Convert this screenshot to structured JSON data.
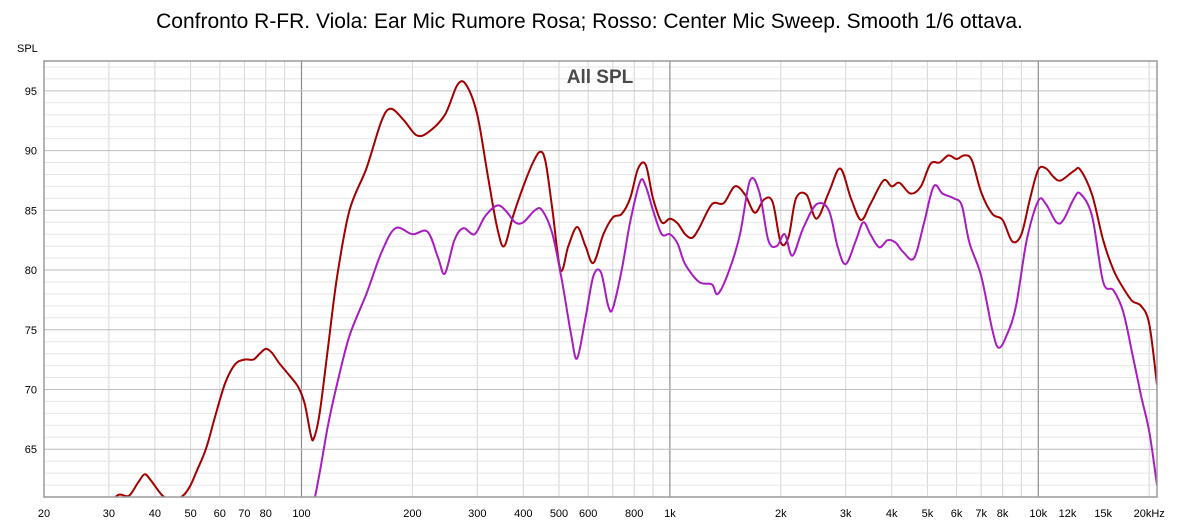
{
  "title": "Confronto R-FR. Viola: Ear Mic Rumore Rosa; Rosso: Center Mic Sweep. Smooth 1/6 ottava.",
  "chart_data": {
    "type": "line",
    "title": "Confronto R-FR. Viola: Ear Mic Rumore Rosa; Rosso: Center Mic Sweep. Smooth 1/6 ottava.",
    "subtitle": "All SPL",
    "ylabel": "SPL",
    "xlabel": "",
    "xscale": "log",
    "xlim": [
      20,
      21000
    ],
    "ylim": [
      61,
      97.5
    ],
    "grid": true,
    "x_ticks": [
      {
        "value": 20,
        "label": "20",
        "color": "#000000"
      },
      {
        "value": 30,
        "label": "30",
        "color": "#000000"
      },
      {
        "value": 40,
        "label": "40",
        "color": "#000000"
      },
      {
        "value": 50,
        "label": "50",
        "color": "#000000"
      },
      {
        "value": 60,
        "label": "60",
        "color": "#000000"
      },
      {
        "value": 70,
        "label": "70",
        "color": "#000000"
      },
      {
        "value": 80,
        "label": "80",
        "color": "#000000"
      },
      {
        "value": 100,
        "label": "100",
        "color": "#000000"
      },
      {
        "value": 200,
        "label": "200",
        "color": "#000000"
      },
      {
        "value": 300,
        "label": "300",
        "color": "#000000"
      },
      {
        "value": 400,
        "label": "400",
        "color": "#000000"
      },
      {
        "value": 500,
        "label": "500",
        "color": "#000000"
      },
      {
        "value": 600,
        "label": "600",
        "color": "#000000"
      },
      {
        "value": 800,
        "label": "800",
        "color": "#000000"
      },
      {
        "value": 1000,
        "label": "1k",
        "color": "#000000"
      },
      {
        "value": 2000,
        "label": "2k",
        "color": "#000000"
      },
      {
        "value": 3000,
        "label": "3k",
        "color": "#000000"
      },
      {
        "value": 4000,
        "label": "4k",
        "color": "#000000"
      },
      {
        "value": 5000,
        "label": "5k",
        "color": "#000000"
      },
      {
        "value": 6000,
        "label": "6k",
        "color": "#000000"
      },
      {
        "value": 7000,
        "label": "7k",
        "color": "#000000"
      },
      {
        "value": 8000,
        "label": "8k",
        "color": "#000000"
      },
      {
        "value": 10000,
        "label": "10k",
        "color": "#000000"
      },
      {
        "value": 12000,
        "label": "12k",
        "color": "#888888"
      },
      {
        "value": 15000,
        "label": "15k",
        "color": "#888888"
      },
      {
        "value": 20000,
        "label": "20kHz",
        "color": "#000000"
      }
    ],
    "y_ticks": [
      65,
      70,
      75,
      80,
      85,
      90,
      95
    ],
    "colors": {
      "plot_background": "#ffffff",
      "grid_minor": "#d6d6d6",
      "grid_major": "#8c8c8c",
      "frame": "#9a9a9a"
    },
    "series": [
      {
        "color": "#a30000",
        "points": [
          [
            25,
            60.2
          ],
          [
            30,
            60.7
          ],
          [
            32,
            61.2
          ],
          [
            34,
            61.1
          ],
          [
            36,
            62.2
          ],
          [
            37.5,
            62.9
          ],
          [
            39,
            62.4
          ],
          [
            42,
            61.1
          ],
          [
            45,
            60.7
          ],
          [
            48,
            61.2
          ],
          [
            50,
            62.0
          ],
          [
            52,
            63.2
          ],
          [
            55,
            65.0
          ],
          [
            58,
            67.5
          ],
          [
            62,
            70.5
          ],
          [
            66,
            72.1
          ],
          [
            70,
            72.5
          ],
          [
            74,
            72.5
          ],
          [
            77,
            73.0
          ],
          [
            80,
            73.4
          ],
          [
            83,
            73.1
          ],
          [
            87,
            72.2
          ],
          [
            92,
            71.3
          ],
          [
            98,
            70.2
          ],
          [
            102,
            68.8
          ],
          [
            106,
            66.2
          ],
          [
            108,
            65.9
          ],
          [
            112,
            68.0
          ],
          [
            118,
            73.5
          ],
          [
            125,
            79.5
          ],
          [
            135,
            85.0
          ],
          [
            150,
            88.5
          ],
          [
            165,
            92.5
          ],
          [
            175,
            93.5
          ],
          [
            190,
            92.5
          ],
          [
            205,
            91.3
          ],
          [
            220,
            91.5
          ],
          [
            245,
            93.0
          ],
          [
            265,
            95.5
          ],
          [
            280,
            95.5
          ],
          [
            300,
            93.0
          ],
          [
            320,
            88.0
          ],
          [
            340,
            83.5
          ],
          [
            355,
            82.0
          ],
          [
            375,
            84.5
          ],
          [
            400,
            87.0
          ],
          [
            425,
            89.0
          ],
          [
            445,
            89.9
          ],
          [
            460,
            89.0
          ],
          [
            480,
            85.0
          ],
          [
            505,
            80.0
          ],
          [
            530,
            82.0
          ],
          [
            560,
            83.6
          ],
          [
            590,
            82.0
          ],
          [
            620,
            80.6
          ],
          [
            660,
            83.0
          ],
          [
            700,
            84.4
          ],
          [
            740,
            84.7
          ],
          [
            780,
            86.0
          ],
          [
            820,
            88.5
          ],
          [
            860,
            88.8
          ],
          [
            900,
            86.0
          ],
          [
            950,
            84.0
          ],
          [
            1000,
            84.3
          ],
          [
            1050,
            83.9
          ],
          [
            1100,
            83.0
          ],
          [
            1150,
            82.7
          ],
          [
            1200,
            83.5
          ],
          [
            1300,
            85.5
          ],
          [
            1400,
            85.6
          ],
          [
            1500,
            87.0
          ],
          [
            1600,
            86.3
          ],
          [
            1700,
            84.8
          ],
          [
            1800,
            85.9
          ],
          [
            1900,
            85.7
          ],
          [
            2000,
            82.3
          ],
          [
            2100,
            82.8
          ],
          [
            2200,
            86.0
          ],
          [
            2350,
            86.3
          ],
          [
            2500,
            84.3
          ],
          [
            2700,
            86.5
          ],
          [
            2900,
            88.5
          ],
          [
            3100,
            86.0
          ],
          [
            3300,
            84.2
          ],
          [
            3500,
            85.5
          ],
          [
            3800,
            87.5
          ],
          [
            4000,
            87.0
          ],
          [
            4200,
            87.3
          ],
          [
            4500,
            86.4
          ],
          [
            4800,
            87.0
          ],
          [
            5100,
            88.9
          ],
          [
            5400,
            89.0
          ],
          [
            5700,
            89.6
          ],
          [
            6000,
            89.3
          ],
          [
            6300,
            89.6
          ],
          [
            6600,
            89.2
          ],
          [
            7000,
            86.5
          ],
          [
            7500,
            84.7
          ],
          [
            8000,
            84.2
          ],
          [
            8500,
            82.4
          ],
          [
            9000,
            83.0
          ],
          [
            9500,
            86.0
          ],
          [
            10000,
            88.4
          ],
          [
            10500,
            88.5
          ],
          [
            11000,
            87.8
          ],
          [
            11500,
            87.5
          ],
          [
            12500,
            88.3
          ],
          [
            13000,
            88.4
          ],
          [
            14000,
            86.3
          ],
          [
            15000,
            82.5
          ],
          [
            16000,
            80.0
          ],
          [
            17000,
            78.5
          ],
          [
            18000,
            77.4
          ],
          [
            19000,
            77.0
          ],
          [
            20000,
            75.5
          ],
          [
            21000,
            70.4
          ]
        ]
      },
      {
        "color": "#a81dbf",
        "points": [
          [
            108,
            60.5
          ],
          [
            112,
            63.0
          ],
          [
            118,
            67.0
          ],
          [
            125,
            70.5
          ],
          [
            135,
            74.5
          ],
          [
            150,
            78.0
          ],
          [
            165,
            81.5
          ],
          [
            180,
            83.5
          ],
          [
            200,
            83.0
          ],
          [
            220,
            83.2
          ],
          [
            235,
            81.0
          ],
          [
            245,
            79.7
          ],
          [
            260,
            82.5
          ],
          [
            275,
            83.5
          ],
          [
            295,
            83.0
          ],
          [
            315,
            84.5
          ],
          [
            340,
            85.4
          ],
          [
            360,
            84.9
          ],
          [
            380,
            84.0
          ],
          [
            400,
            84.0
          ],
          [
            430,
            85.0
          ],
          [
            450,
            85.0
          ],
          [
            480,
            83.0
          ],
          [
            510,
            79.0
          ],
          [
            540,
            74.5
          ],
          [
            560,
            72.6
          ],
          [
            590,
            76.0
          ],
          [
            620,
            79.5
          ],
          [
            650,
            79.8
          ],
          [
            680,
            77.0
          ],
          [
            700,
            76.8
          ],
          [
            740,
            80.0
          ],
          [
            780,
            84.0
          ],
          [
            830,
            87.4
          ],
          [
            860,
            87.0
          ],
          [
            900,
            85.0
          ],
          [
            950,
            83.0
          ],
          [
            1000,
            83.0
          ],
          [
            1050,
            82.2
          ],
          [
            1100,
            80.5
          ],
          [
            1200,
            79.0
          ],
          [
            1300,
            78.8
          ],
          [
            1350,
            78.0
          ],
          [
            1450,
            80.0
          ],
          [
            1550,
            83.0
          ],
          [
            1650,
            87.5
          ],
          [
            1750,
            86.5
          ],
          [
            1850,
            82.5
          ],
          [
            1950,
            82.0
          ],
          [
            2050,
            83.0
          ],
          [
            2150,
            81.2
          ],
          [
            2300,
            83.5
          ],
          [
            2500,
            85.5
          ],
          [
            2700,
            85.0
          ],
          [
            2850,
            82.0
          ],
          [
            3000,
            80.5
          ],
          [
            3200,
            82.5
          ],
          [
            3350,
            84.0
          ],
          [
            3500,
            83.0
          ],
          [
            3700,
            81.9
          ],
          [
            3900,
            82.5
          ],
          [
            4100,
            82.3
          ],
          [
            4300,
            81.5
          ],
          [
            4600,
            81.0
          ],
          [
            4900,
            84.0
          ],
          [
            5200,
            87.0
          ],
          [
            5500,
            86.4
          ],
          [
            5900,
            86.0
          ],
          [
            6200,
            85.4
          ],
          [
            6500,
            82.3
          ],
          [
            7000,
            79.5
          ],
          [
            7500,
            75.0
          ],
          [
            7800,
            73.5
          ],
          [
            8200,
            74.5
          ],
          [
            8700,
            77.0
          ],
          [
            9300,
            82.5
          ],
          [
            10000,
            85.8
          ],
          [
            10500,
            85.5
          ],
          [
            11200,
            84.0
          ],
          [
            11700,
            84.2
          ],
          [
            12500,
            86.0
          ],
          [
            13000,
            86.4
          ],
          [
            14000,
            84.5
          ],
          [
            15000,
            79.0
          ],
          [
            16000,
            78.3
          ],
          [
            17000,
            76.5
          ],
          [
            18000,
            73.0
          ],
          [
            19000,
            69.5
          ],
          [
            20000,
            66.5
          ],
          [
            21000,
            62.0
          ]
        ]
      }
    ]
  }
}
